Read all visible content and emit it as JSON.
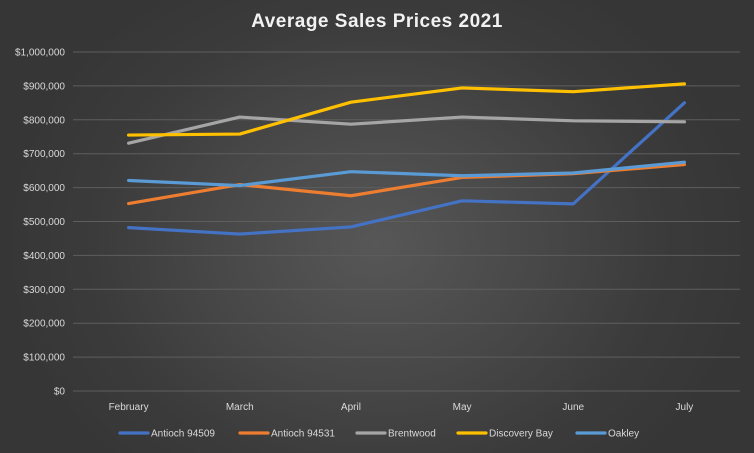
{
  "chart_data": {
    "type": "line",
    "title": "Average Sales Prices 2021",
    "categories": [
      "February",
      "March",
      "April",
      "May",
      "June",
      "July"
    ],
    "ylim": [
      0,
      1000000
    ],
    "yticks": [
      0,
      100000,
      200000,
      300000,
      400000,
      500000,
      600000,
      700000,
      800000,
      900000,
      1000000
    ],
    "ytick_labels": [
      "$0",
      "$100,000",
      "$200,000",
      "$300,000",
      "$400,000",
      "$500,000",
      "$600,000",
      "$700,000",
      "$800,000",
      "$900,000",
      "$1,000,000"
    ],
    "grid": "horizontal",
    "legend": "bottom",
    "series": [
      {
        "name": "Antioch 94509",
        "color": "#4472c4",
        "values": [
          482000,
          463000,
          484000,
          561000,
          552000,
          850000
        ]
      },
      {
        "name": "Antioch 94531",
        "color": "#ed7d31",
        "values": [
          553000,
          609000,
          576000,
          630000,
          641000,
          668000
        ]
      },
      {
        "name": "Brentwood",
        "color": "#a5a5a5",
        "values": [
          731000,
          808000,
          787000,
          808000,
          797000,
          794000
        ]
      },
      {
        "name": "Discovery Bay",
        "color": "#ffc000",
        "values": [
          755000,
          758000,
          852000,
          894000,
          883000,
          906000
        ]
      },
      {
        "name": "Oakley",
        "color": "#5b9bd5",
        "values": [
          621000,
          606000,
          647000,
          635000,
          643000,
          675000
        ]
      }
    ]
  }
}
